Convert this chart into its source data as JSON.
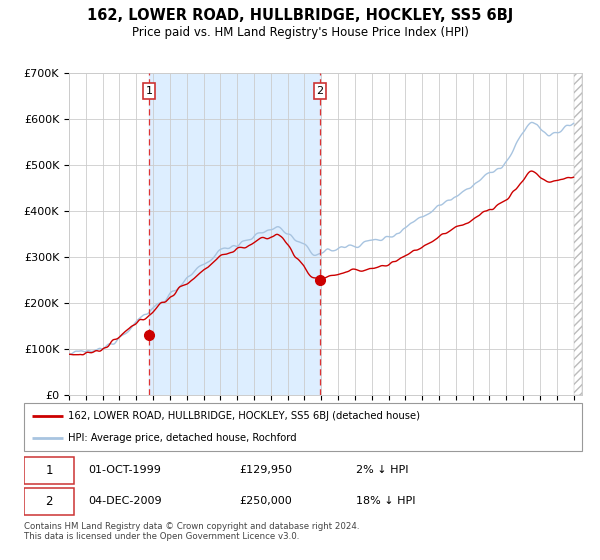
{
  "title": "162, LOWER ROAD, HULLBRIDGE, HOCKLEY, SS5 6BJ",
  "subtitle": "Price paid vs. HM Land Registry's House Price Index (HPI)",
  "legend_line1": "162, LOWER ROAD, HULLBRIDGE, HOCKLEY, SS5 6BJ (detached house)",
  "legend_line2": "HPI: Average price, detached house, Rochford",
  "footnote": "Contains HM Land Registry data © Crown copyright and database right 2024.\nThis data is licensed under the Open Government Licence v3.0.",
  "sale1_date": "01-OCT-1999",
  "sale1_price": "£129,950",
  "sale1_hpi": "2% ↓ HPI",
  "sale2_date": "04-DEC-2009",
  "sale2_price": "£250,000",
  "sale2_hpi": "18% ↓ HPI",
  "hpi_color": "#a8c4e0",
  "price_color": "#cc0000",
  "sale_dot_color": "#cc0000",
  "bg_highlight_color": "#ddeeff",
  "vline_color": "#dd3333",
  "grid_color": "#cccccc",
  "ylim": [
    0,
    700000
  ],
  "yticks": [
    0,
    100000,
    200000,
    300000,
    400000,
    500000,
    600000,
    700000
  ],
  "sale1_year": 1999.75,
  "sale1_price_val": 129950,
  "sale2_year": 2009.917,
  "sale2_price_val": 250000
}
